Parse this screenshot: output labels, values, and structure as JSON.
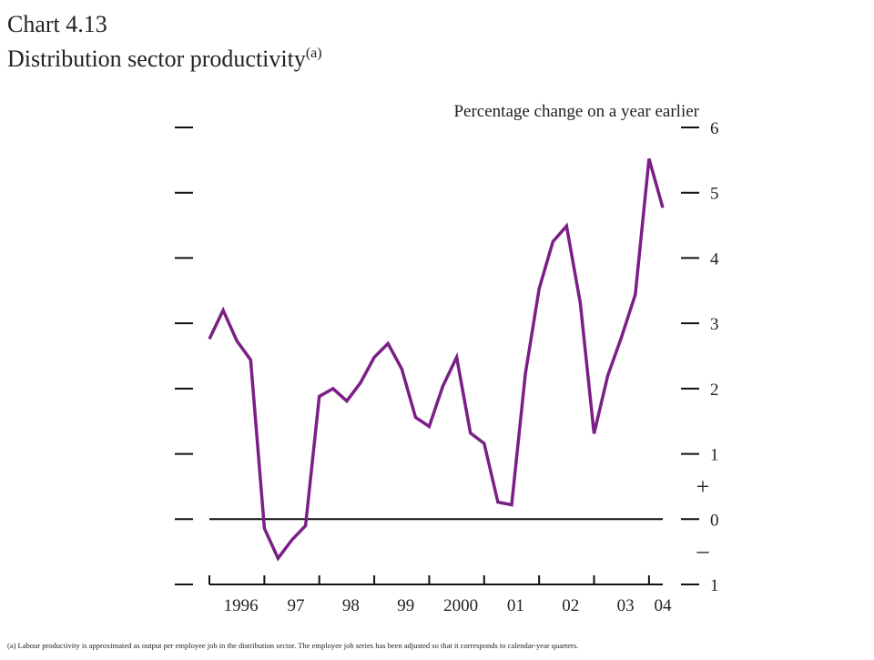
{
  "chart_data": {
    "type": "line",
    "title": "Chart 4.13",
    "subtitle": "Distribution sector productivity",
    "subtitle_note": "(a)",
    "ylabel": "Percentage change on a year earlier",
    "sign_plus": "+",
    "sign_minus": "–",
    "footnote": "(a)  Labour productivity is approximated as output per employee job in the distribution sector.  The employee job series has been adjusted so that it corresponds to calendar-year quarters.",
    "categories": [
      "1996",
      null,
      null,
      null,
      "97",
      null,
      null,
      null,
      "98",
      null,
      null,
      null,
      "99",
      null,
      null,
      null,
      "2000",
      null,
      null,
      null,
      "01",
      null,
      null,
      null,
      "02",
      null,
      null,
      null,
      "03",
      null,
      null,
      null,
      "04",
      null
    ],
    "series": [
      {
        "name": "Distribution sector productivity",
        "color": "#7b1f86",
        "values": [
          2.76,
          3.2,
          2.73,
          2.44,
          -0.14,
          -0.6,
          -0.32,
          -0.1,
          1.88,
          2.0,
          1.81,
          2.09,
          2.48,
          2.69,
          2.3,
          1.56,
          1.42,
          2.04,
          2.48,
          1.32,
          1.16,
          0.26,
          0.22,
          2.23,
          3.53,
          4.25,
          4.49,
          3.31,
          1.31,
          2.2,
          2.79,
          3.44,
          5.52,
          4.77
        ]
      }
    ],
    "ylim": [
      -1,
      6
    ],
    "yticks": [
      {
        "value": -1,
        "label": "1"
      },
      0,
      1,
      2,
      3,
      4,
      5,
      6
    ]
  }
}
